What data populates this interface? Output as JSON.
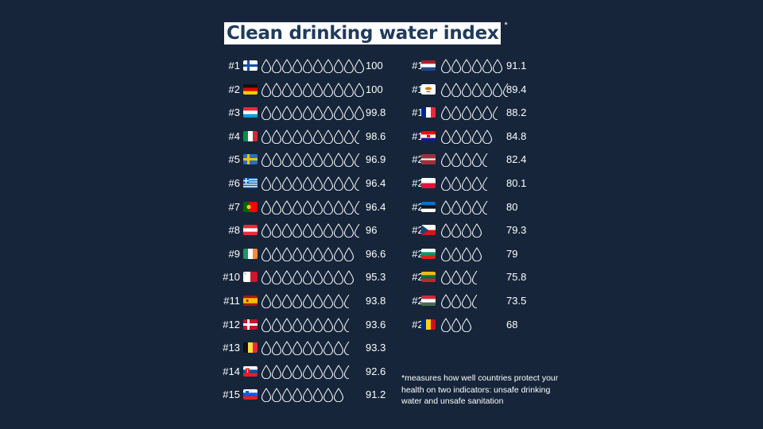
{
  "title": "Clean drinking water index",
  "title_marker": "*",
  "footnote": "*measures how well countries protect your health on two indicators: unsafe drinking water and unsafe sanitation",
  "colors": {
    "background": "#16253a",
    "title_bg": "#ffffff",
    "title_text": "#1f3a5c",
    "drop_stroke": "#ffffff"
  },
  "chart_data": {
    "type": "table",
    "title": "Clean drinking water index",
    "columns": [
      "rank",
      "country_flag",
      "drops",
      "score"
    ],
    "max_drops": 10,
    "rows": [
      {
        "rank": "#1",
        "flag": "finland",
        "drops": 10,
        "score": "100"
      },
      {
        "rank": "#2",
        "flag": "germany",
        "drops": 10,
        "score": "100"
      },
      {
        "rank": "#3",
        "flag": "luxembourg",
        "drops": 10,
        "score": "99.8"
      },
      {
        "rank": "#4",
        "flag": "italy",
        "drops": 9.5,
        "score": "98.6"
      },
      {
        "rank": "#5",
        "flag": "sweden",
        "drops": 9.5,
        "score": "96.9"
      },
      {
        "rank": "#6",
        "flag": "greece",
        "drops": 9.5,
        "score": "96.4"
      },
      {
        "rank": "#7",
        "flag": "portugal",
        "drops": 9.5,
        "score": "96.4"
      },
      {
        "rank": "#8",
        "flag": "austria",
        "drops": 9.5,
        "score": "96"
      },
      {
        "rank": "#9",
        "flag": "ireland",
        "drops": 9,
        "score": "96.6"
      },
      {
        "rank": "#10",
        "flag": "malta",
        "drops": 9,
        "score": "95.3"
      },
      {
        "rank": "#11",
        "flag": "spain",
        "drops": 8.5,
        "score": "93.8"
      },
      {
        "rank": "#12",
        "flag": "denmark",
        "drops": 8.5,
        "score": "93.6"
      },
      {
        "rank": "#13",
        "flag": "belgium",
        "drops": 8.5,
        "score": "93.3"
      },
      {
        "rank": "#14",
        "flag": "slovakia",
        "drops": 8.5,
        "score": "92.6"
      },
      {
        "rank": "#15",
        "flag": "slovenia",
        "drops": 8,
        "score": "91.2"
      },
      {
        "rank": "#16",
        "flag": "netherlands",
        "drops": 6,
        "score": "91.1"
      },
      {
        "rank": "#17",
        "flag": "cyprus",
        "drops": 6.5,
        "score": "89.4"
      },
      {
        "rank": "#18",
        "flag": "france",
        "drops": 5.5,
        "score": "88.2"
      },
      {
        "rank": "#19",
        "flag": "croatia",
        "drops": 5,
        "score": "84.8"
      },
      {
        "rank": "#20",
        "flag": "latvia",
        "drops": 4.5,
        "score": "82.4"
      },
      {
        "rank": "#21",
        "flag": "poland",
        "drops": 4.5,
        "score": "80.1"
      },
      {
        "rank": "#22",
        "flag": "estonia",
        "drops": 4.5,
        "score": "80"
      },
      {
        "rank": "#23",
        "flag": "czechia",
        "drops": 4,
        "score": "79.3"
      },
      {
        "rank": "#24",
        "flag": "bulgaria",
        "drops": 4,
        "score": "79"
      },
      {
        "rank": "#25",
        "flag": "lithuania",
        "drops": 3.5,
        "score": "75.8"
      },
      {
        "rank": "#26",
        "flag": "hungary",
        "drops": 3.5,
        "score": "73.5"
      },
      {
        "rank": "#27",
        "flag": "romania",
        "drops": 3,
        "score": "68"
      }
    ]
  }
}
